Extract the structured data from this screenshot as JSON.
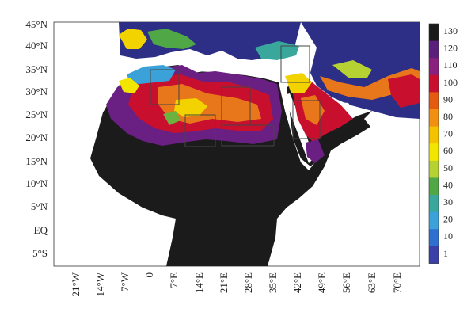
{
  "map": {
    "lat_labels": [
      "45°N",
      "40°N",
      "35°N",
      "30°N",
      "25°N",
      "20°N",
      "15°N",
      "10°N",
      "5°N",
      "EQ",
      "5°S"
    ],
    "lon_labels": [
      "21°W",
      "14°W",
      "7°W",
      "0",
      "7°E",
      "14°E",
      "21°E",
      "28°E",
      "35°E",
      "42°E",
      "49°E",
      "56°E",
      "63°E",
      "70°E"
    ]
  },
  "colorbar": {
    "labels": [
      "130",
      "120",
      "110",
      "100",
      "90",
      "80",
      "70",
      "60",
      "50",
      "40",
      "30",
      "20",
      "10",
      "1"
    ],
    "colors": [
      "#1a1a1a",
      "#5a1f7a",
      "#8a1f7e",
      "#c8102e",
      "#e35a10",
      "#f08f10",
      "#f5c200",
      "#f2e600",
      "#b5d232",
      "#4fa845",
      "#3aa79d",
      "#3aa2d8",
      "#2f6fd0",
      "#3b3fa8"
    ]
  },
  "colors": {
    "land_black": "#1b1b1b",
    "sea_white": "#ffffff",
    "box_outline": "#444444"
  }
}
